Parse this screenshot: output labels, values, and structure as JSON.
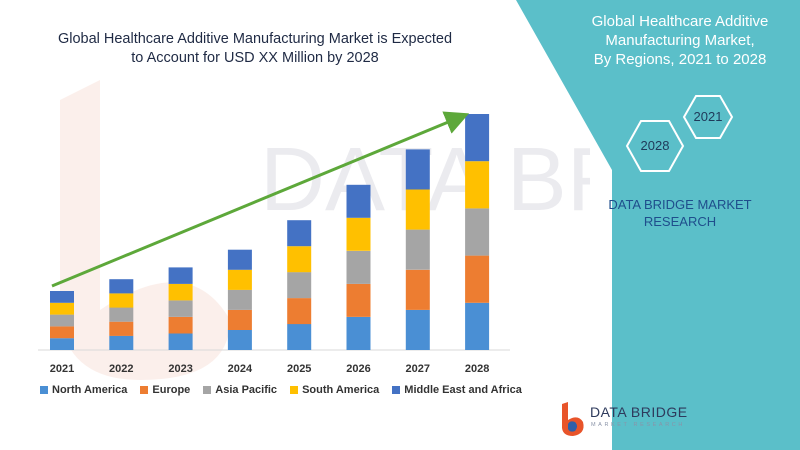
{
  "title_lines": [
    "Global Healthcare Additive Manufacturing Market is Expected",
    "to Account for USD XX Million by 2028"
  ],
  "panel": {
    "title_lines": [
      "Global Healthcare Additive",
      "Manufacturing Market,",
      "By Regions, 2021 to 2028"
    ],
    "hex_labels": [
      "2021",
      "2028"
    ],
    "brand_lines": [
      "DATA BRIDGE MARKET",
      "RESEARCH"
    ],
    "bg_color": "#5bbfc9"
  },
  "logo": {
    "name": "DATA BRIDGE",
    "subtitle": "MARKET RESEARCH"
  },
  "watermark_text": "DATA BRIDGE",
  "chart_data": {
    "type": "bar",
    "stacked": true,
    "categories": [
      "2021",
      "2022",
      "2023",
      "2024",
      "2025",
      "2026",
      "2027",
      "2028"
    ],
    "series": [
      {
        "name": "North America",
        "color": "#4a8fd4",
        "values": [
          10,
          12,
          14,
          17,
          22,
          28,
          34,
          40
        ]
      },
      {
        "name": "Europe",
        "color": "#ed7d31",
        "values": [
          10,
          12,
          14,
          17,
          22,
          28,
          34,
          40
        ]
      },
      {
        "name": "Asia Pacific",
        "color": "#a5a5a5",
        "values": [
          10,
          12,
          14,
          17,
          22,
          28,
          34,
          40
        ]
      },
      {
        "name": "South America",
        "color": "#ffc000",
        "values": [
          10,
          12,
          14,
          17,
          22,
          28,
          34,
          40
        ]
      },
      {
        "name": "Middle East and Africa",
        "color": "#4472c4",
        "values": [
          10,
          12,
          14,
          17,
          22,
          28,
          34,
          40
        ]
      }
    ],
    "ylim": [
      0,
      200
    ],
    "trend_arrow": true,
    "trend_color": "#5da83a",
    "legend_position": "bottom"
  }
}
